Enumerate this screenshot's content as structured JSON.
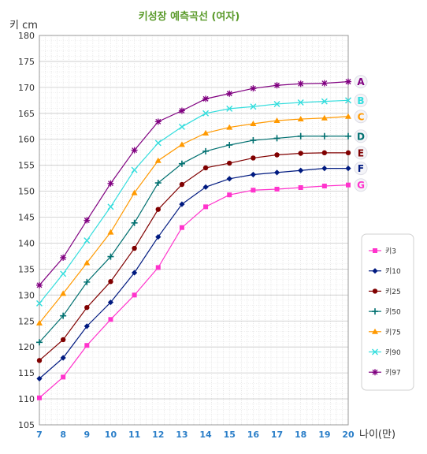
{
  "chart_data": {
    "type": "line",
    "title": "키성장 예측곡선 (여자)",
    "ylabel": "키 cm",
    "xlabel": "나이(만)",
    "x": [
      7,
      8,
      9,
      10,
      11,
      12,
      13,
      14,
      15,
      16,
      17,
      18,
      19,
      20
    ],
    "ylim": [
      105,
      180
    ],
    "yticks": [
      105,
      110,
      115,
      120,
      125,
      130,
      135,
      140,
      145,
      150,
      155,
      160,
      165,
      170,
      175,
      180
    ],
    "xlim": [
      7,
      20
    ],
    "grid": true,
    "legend_position": "right",
    "series": [
      {
        "name": "키3",
        "letter": "G",
        "color": "#ff33cc",
        "marker": "square",
        "values": [
          110.2,
          114.2,
          120.3,
          125.3,
          130.0,
          135.3,
          143.0,
          147.0,
          149.3,
          150.2,
          150.4,
          150.7,
          151.0,
          151.2
        ]
      },
      {
        "name": "키10",
        "letter": "F",
        "color": "#001a80",
        "marker": "diamond",
        "values": [
          113.9,
          117.9,
          124.0,
          128.6,
          134.3,
          141.2,
          147.5,
          150.8,
          152.4,
          153.2,
          153.6,
          154.0,
          154.4,
          154.4
        ]
      },
      {
        "name": "키25",
        "letter": "E",
        "color": "#800000",
        "marker": "circle",
        "values": [
          117.4,
          121.4,
          127.6,
          132.6,
          139.0,
          146.5,
          151.3,
          154.5,
          155.4,
          156.4,
          157.0,
          157.3,
          157.4,
          157.4
        ]
      },
      {
        "name": "키50",
        "letter": "D",
        "color": "#007070",
        "marker": "plus",
        "values": [
          120.9,
          126.0,
          132.5,
          137.4,
          143.9,
          151.6,
          155.3,
          157.7,
          158.9,
          159.8,
          160.2,
          160.6,
          160.6,
          160.6
        ]
      },
      {
        "name": "키75",
        "letter": "C",
        "color": "#ff9900",
        "marker": "triangle",
        "values": [
          124.6,
          130.3,
          136.2,
          142.1,
          149.7,
          155.9,
          159.0,
          161.2,
          162.3,
          163.0,
          163.6,
          163.9,
          164.1,
          164.4
        ]
      },
      {
        "name": "키90",
        "letter": "B",
        "color": "#33dddd",
        "marker": "x",
        "values": [
          128.4,
          134.1,
          140.5,
          147.0,
          154.1,
          159.3,
          162.4,
          165.0,
          165.9,
          166.3,
          166.8,
          167.1,
          167.3,
          167.5
        ]
      },
      {
        "name": "키97",
        "letter": "A",
        "color": "#800080",
        "marker": "star",
        "values": [
          131.9,
          137.2,
          144.4,
          151.5,
          157.9,
          163.4,
          165.5,
          167.8,
          168.8,
          169.8,
          170.4,
          170.7,
          170.8,
          171.1
        ]
      }
    ]
  }
}
